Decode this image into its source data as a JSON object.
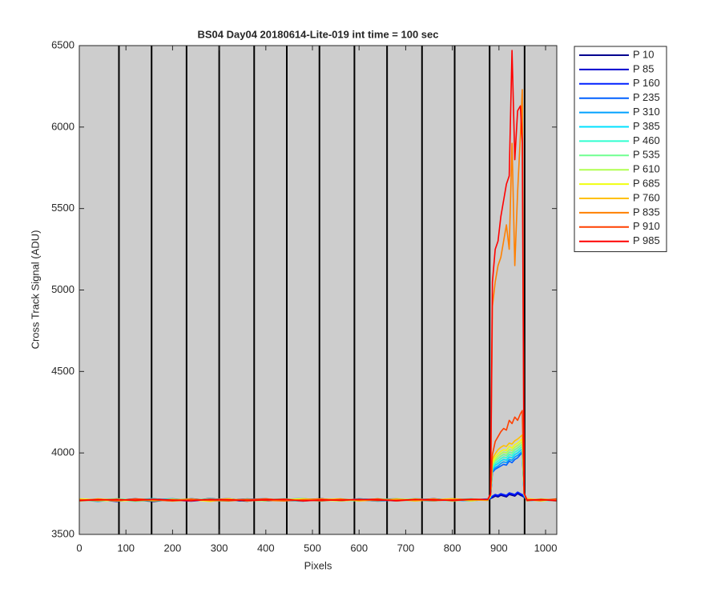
{
  "chart_data": {
    "type": "line",
    "title": "BS04 Day04 20180614-Lite-019 int time = 100 sec",
    "x_label": "Pixels",
    "y_label": "Cross Track Signal (ADU)",
    "xlim": [
      0,
      1024
    ],
    "ylim": [
      3500,
      6500
    ],
    "xticks": [
      0,
      100,
      200,
      300,
      400,
      500,
      600,
      700,
      800,
      900,
      1000
    ],
    "yticks": [
      3500,
      4000,
      4500,
      5000,
      5500,
      6000,
      6500
    ],
    "background": "#cdcdcd",
    "vertical_lines": [
      85,
      155,
      230,
      300,
      375,
      445,
      515,
      590,
      660,
      735,
      805,
      880,
      955
    ],
    "legend": "outside-right",
    "x": [
      0,
      40,
      80,
      120,
      160,
      200,
      240,
      280,
      320,
      360,
      400,
      440,
      480,
      520,
      560,
      600,
      640,
      680,
      720,
      760,
      800,
      840,
      876,
      882,
      886,
      892,
      898,
      904,
      910,
      916,
      922,
      928,
      934,
      940,
      946,
      950,
      954,
      960,
      990,
      1024
    ],
    "series": [
      {
        "name": "P 10",
        "color": "#00008f",
        "values": [
          3712,
          3705,
          3718,
          3710,
          3702,
          3715,
          3708,
          3720,
          3711,
          3704,
          3716,
          3709,
          3713,
          3719,
          3706,
          3712,
          3717,
          3708,
          3714,
          3710,
          3718,
          3712,
          3715,
          3720,
          3725,
          3735,
          3730,
          3740,
          3735,
          3730,
          3745,
          3740,
          3735,
          3750,
          3740,
          3735,
          3728,
          3715,
          3708,
          3712
        ]
      },
      {
        "name": "P 85",
        "color": "#0000cf",
        "values": [
          3708,
          3714,
          3702,
          3716,
          3711,
          3706,
          3719,
          3709,
          3713,
          3717,
          3705,
          3712,
          3718,
          3708,
          3714,
          3710,
          3706,
          3716,
          3711,
          3719,
          3709,
          3714,
          3710,
          3722,
          3730,
          3740,
          3735,
          3745,
          3740,
          3735,
          3750,
          3745,
          3740,
          3755,
          3745,
          3740,
          3732,
          3712,
          3714,
          3706
        ]
      },
      {
        "name": "P 160",
        "color": "#0020ff",
        "values": [
          3715,
          3709,
          3712,
          3706,
          3718,
          3711,
          3704,
          3714,
          3719,
          3708,
          3712,
          3706,
          3716,
          3711,
          3709,
          3718,
          3713,
          3705,
          3717,
          3712,
          3707,
          3716,
          3712,
          3724,
          3735,
          3745,
          3740,
          3750,
          3745,
          3740,
          3755,
          3750,
          3745,
          3760,
          3750,
          3745,
          3730,
          3718,
          3709,
          3714
        ]
      },
      {
        "name": "P 235",
        "color": "#0060ff",
        "values": [
          3706,
          3716,
          3710,
          3719,
          3707,
          3713,
          3716,
          3705,
          3710,
          3715,
          3719,
          3708,
          3704,
          3716,
          3712,
          3707,
          3715,
          3718,
          3709,
          3705,
          3716,
          3710,
          3718,
          3726,
          3880,
          3900,
          3910,
          3920,
          3930,
          3925,
          3950,
          3940,
          3960,
          3970,
          3990,
          4000,
          3735,
          3710,
          3715,
          3707
        ]
      },
      {
        "name": "P 310",
        "color": "#00a0ff",
        "values": [
          3713,
          3702,
          3716,
          3708,
          3714,
          3719,
          3709,
          3712,
          3706,
          3718,
          3710,
          3715,
          3720,
          3707,
          3716,
          3713,
          3704,
          3710,
          3719,
          3714,
          3711,
          3705,
          3716,
          3728,
          3890,
          3910,
          3920,
          3935,
          3945,
          3940,
          3960,
          3955,
          3975,
          3985,
          4000,
          4010,
          3738,
          3706,
          3712,
          3716
        ]
      },
      {
        "name": "P 385",
        "color": "#00e0ff",
        "values": [
          3709,
          3717,
          3706,
          3713,
          3720,
          3705,
          3714,
          3710,
          3718,
          3706,
          3713,
          3719,
          3709,
          3715,
          3705,
          3719,
          3710,
          3714,
          3706,
          3717,
          3713,
          3719,
          3709,
          3730,
          3900,
          3925,
          3935,
          3950,
          3960,
          3955,
          3975,
          3970,
          3990,
          4000,
          4015,
          4025,
          3740,
          3714,
          3706,
          3711
        ]
      },
      {
        "name": "P 460",
        "color": "#30ffd0",
        "values": [
          3716,
          3708,
          3713,
          3703,
          3710,
          3717,
          3706,
          3719,
          3713,
          3709,
          3706,
          3716,
          3712,
          3704,
          3718,
          3709,
          3716,
          3706,
          3713,
          3709,
          3718,
          3708,
          3714,
          3732,
          3910,
          3935,
          3950,
          3965,
          3975,
          3970,
          3990,
          3985,
          4005,
          4015,
          4030,
          4040,
          3742,
          3709,
          3716,
          3704
        ]
      },
      {
        "name": "P 535",
        "color": "#70ff90",
        "values": [
          3704,
          3713,
          3719,
          3711,
          3706,
          3712,
          3718,
          3708,
          3704,
          3716,
          3711,
          3707,
          3718,
          3713,
          3710,
          3706,
          3719,
          3712,
          3707,
          3716,
          3704,
          3717,
          3711,
          3734,
          3920,
          3950,
          3965,
          3980,
          3990,
          3985,
          4005,
          4000,
          4020,
          4030,
          4045,
          4055,
          3744,
          3716,
          3711,
          3718
        ]
      },
      {
        "name": "P 610",
        "color": "#b0ff50",
        "values": [
          3711,
          3706,
          3709,
          3717,
          3713,
          3704,
          3711,
          3716,
          3708,
          3713,
          3718,
          3710,
          3706,
          3717,
          3713,
          3715,
          3708,
          3719,
          3712,
          3706,
          3714,
          3710,
          3713,
          3735,
          3930,
          3960,
          3980,
          3995,
          4005,
          4000,
          4020,
          4015,
          4035,
          4045,
          4060,
          4070,
          3745,
          3708,
          3718,
          3710
        ]
      },
      {
        "name": "P 685",
        "color": "#f0ff10",
        "values": [
          3718,
          3712,
          3705,
          3710,
          3716,
          3709,
          3713,
          3703,
          3716,
          3711,
          3707,
          3714,
          3719,
          3710,
          3706,
          3712,
          3715,
          3709,
          3718,
          3711,
          3716,
          3706,
          3716,
          3737,
          3940,
          3975,
          3995,
          4010,
          4020,
          4015,
          4040,
          4030,
          4050,
          4060,
          4075,
          4090,
          3746,
          3713,
          3705,
          3715
        ]
      },
      {
        "name": "P 760",
        "color": "#ffc000",
        "values": [
          3705,
          3718,
          3711,
          3714,
          3707,
          3716,
          3709,
          3712,
          3719,
          3705,
          3713,
          3717,
          3708,
          3714,
          3718,
          3706,
          3712,
          3716,
          3705,
          3713,
          3719,
          3712,
          3709,
          3739,
          3960,
          3995,
          4020,
          4035,
          4045,
          4040,
          4060,
          4055,
          4075,
          4085,
          4100,
          4110,
          3748,
          3719,
          3712,
          3708
        ]
      },
      {
        "name": "P 835",
        "color": "#ff8000",
        "values": [
          3714,
          3707,
          3716,
          3706,
          3712,
          3710,
          3717,
          3707,
          3711,
          3716,
          3709,
          3705,
          3714,
          3718,
          3708,
          3713,
          3707,
          3715,
          3710,
          3718,
          3706,
          3715,
          3712,
          3742,
          4900,
          5050,
          5150,
          5200,
          5300,
          5400,
          5250,
          5900,
          5150,
          5600,
          5950,
          6230,
          3750,
          3706,
          3716,
          3712
        ]
      },
      {
        "name": "P 910",
        "color": "#ff4000",
        "values": [
          3710,
          3715,
          3707,
          3718,
          3712,
          3705,
          3714,
          3710,
          3706,
          3713,
          3718,
          3709,
          3711,
          3706,
          3715,
          3710,
          3718,
          3705,
          3713,
          3708,
          3712,
          3717,
          3714,
          3745,
          3990,
          4070,
          4100,
          4130,
          4150,
          4140,
          4200,
          4180,
          4220,
          4200,
          4240,
          4260,
          3752,
          3712,
          3708,
          3718
        ]
      },
      {
        "name": "P 985",
        "color": "#ff0000",
        "values": [
          3707,
          3712,
          3714,
          3709,
          3716,
          3711,
          3706,
          3715,
          3713,
          3708,
          3711,
          3716,
          3705,
          3712,
          3709,
          3716,
          3711,
          3707,
          3715,
          3712,
          3709,
          3713,
          3715,
          3748,
          5050,
          5250,
          5300,
          5450,
          5550,
          5650,
          5700,
          6470,
          5800,
          6100,
          6130,
          5900,
          3755,
          3710,
          3714,
          3706
        ]
      }
    ]
  }
}
